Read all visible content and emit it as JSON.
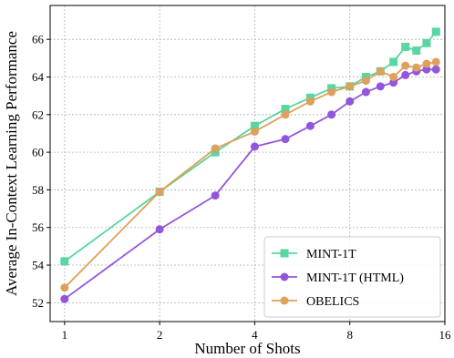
{
  "chart_data": {
    "type": "line",
    "title": "",
    "xlabel": "Number of Shots",
    "ylabel": "Average In-Context Learning Performance",
    "x_scale": "log2",
    "xlim": [
      0.9,
      16
    ],
    "ylim": [
      51,
      67.8
    ],
    "x_ticks": [
      1,
      2,
      4,
      8,
      16
    ],
    "y_ticks": [
      52,
      54,
      56,
      58,
      60,
      62,
      64,
      66
    ],
    "grid": true,
    "legend_position": "lower-right",
    "series": [
      {
        "name": "MINT-1T",
        "color": "#5ad6a1",
        "marker": "square",
        "x": [
          1,
          2,
          3,
          4,
          5,
          6,
          7,
          8,
          9,
          10,
          11,
          12,
          13,
          14,
          15
        ],
        "y": [
          54.2,
          57.9,
          60.0,
          61.4,
          62.3,
          62.9,
          63.4,
          63.5,
          64.0,
          64.3,
          64.8,
          65.6,
          65.4,
          65.8,
          66.4
        ]
      },
      {
        "name": "MINT-1T (HTML)",
        "color": "#9355dc",
        "marker": "circle",
        "x": [
          1,
          2,
          3,
          4,
          5,
          6,
          7,
          8,
          9,
          10,
          11,
          12,
          13,
          14,
          15
        ],
        "y": [
          52.2,
          55.9,
          57.7,
          60.3,
          60.7,
          61.4,
          62.0,
          62.7,
          63.2,
          63.5,
          63.7,
          64.1,
          64.3,
          64.4,
          64.4
        ]
      },
      {
        "name": "OBELICS",
        "color": "#dca15a",
        "marker": "circle",
        "x": [
          1,
          2,
          3,
          4,
          5,
          6,
          7,
          8,
          9,
          10,
          11,
          12,
          13,
          14,
          15
        ],
        "y": [
          52.8,
          57.9,
          60.2,
          61.1,
          62.0,
          62.7,
          63.2,
          63.5,
          63.8,
          64.3,
          64.0,
          64.6,
          64.5,
          64.7,
          64.8
        ]
      }
    ]
  }
}
